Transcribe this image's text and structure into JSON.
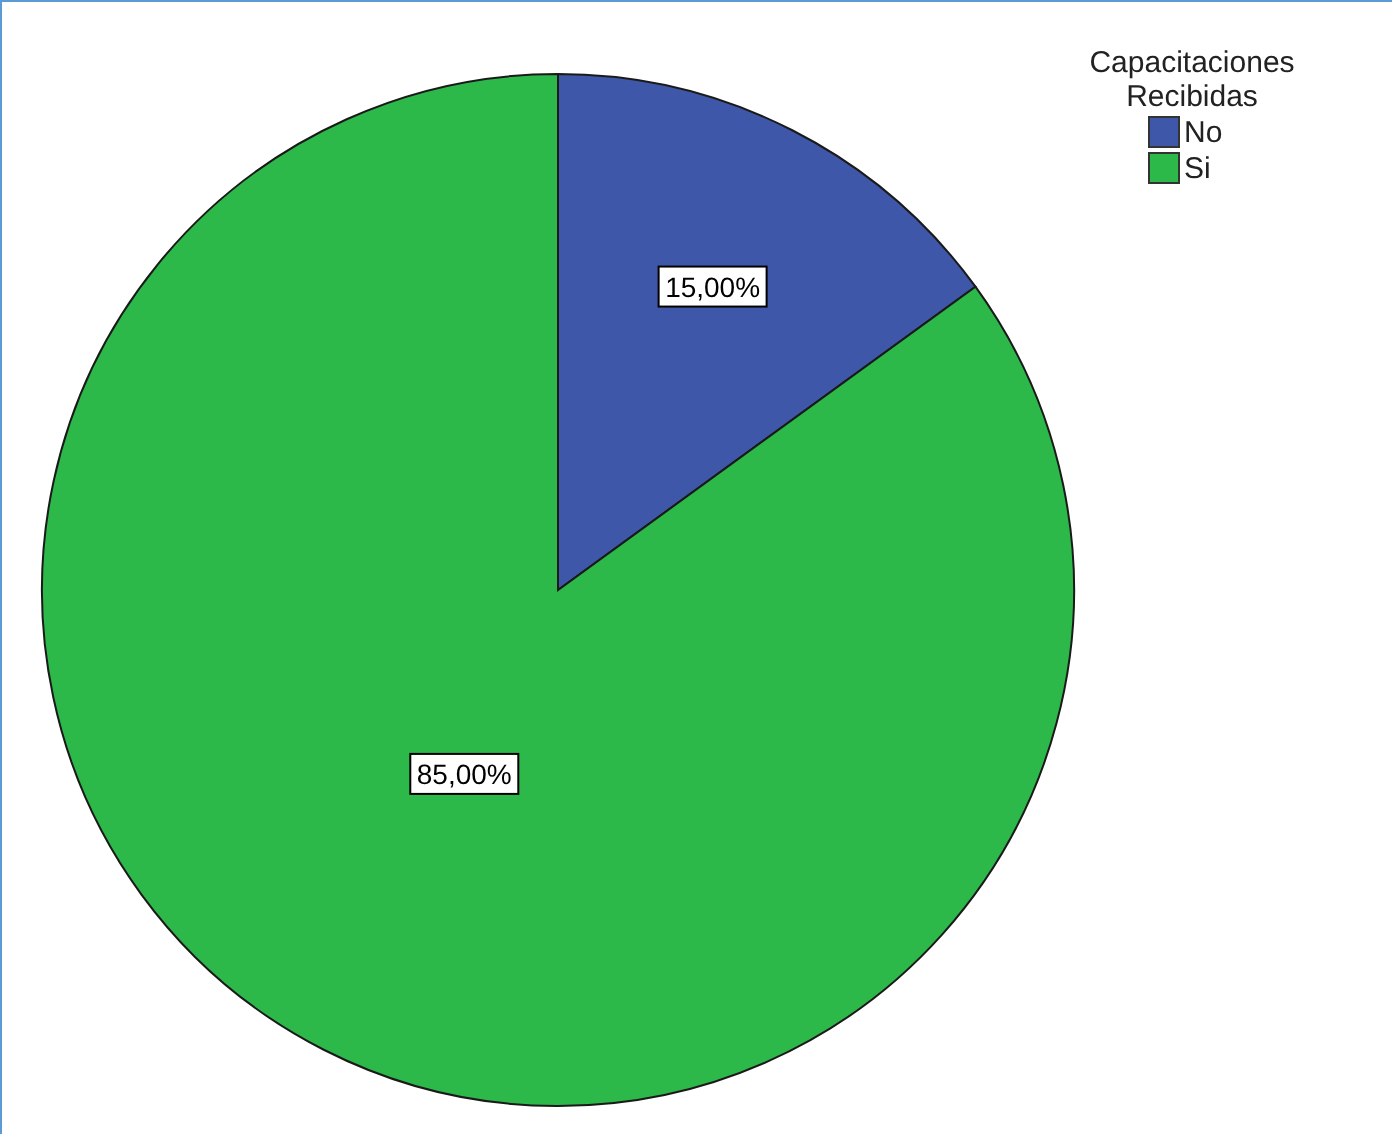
{
  "chart_data": {
    "type": "pie",
    "legend_title": "Capacitaciones Recibidas",
    "categories": [
      "No",
      "Si"
    ],
    "values": [
      15,
      85
    ],
    "colors": [
      "#3f57a8",
      "#2db84a"
    ],
    "value_labels": [
      "15,00%",
      "85,00%"
    ],
    "legend": "top right"
  }
}
